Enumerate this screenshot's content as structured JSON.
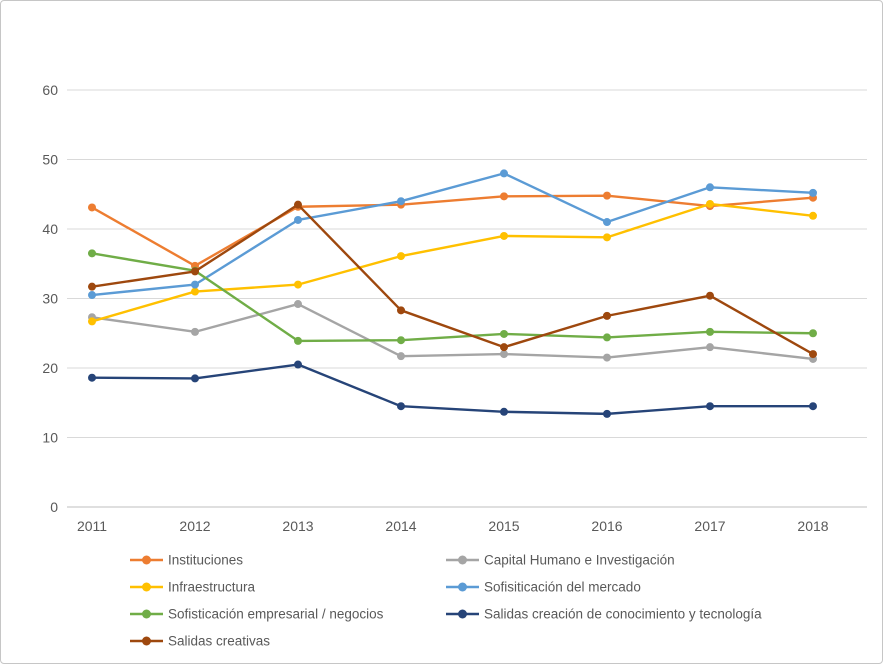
{
  "window": {
    "background_color": "#ffffff",
    "border_color": "#c6c6c6",
    "axis_text_color": "#595959",
    "gridline_color": "#d9d9d9",
    "axis_line_color": "#bfbfbf"
  },
  "chart_data": {
    "type": "line",
    "title": "",
    "xlabel": "",
    "ylabel": "",
    "grid": true,
    "legend_position": "bottom",
    "ylim": [
      0,
      60
    ],
    "yticks": [
      0,
      10,
      20,
      30,
      40,
      50,
      60
    ],
    "categories": [
      "2011",
      "2012",
      "2013",
      "2014",
      "2015",
      "2016",
      "2017",
      "2018"
    ],
    "series": [
      {
        "id": "instituciones",
        "name": "Instituciones",
        "color": "#ED7D31",
        "values": [
          43.1,
          34.7,
          43.2,
          43.5,
          44.7,
          44.8,
          43.3,
          44.5
        ]
      },
      {
        "id": "capital-humano-e-investigacion",
        "name": "Capital Humano e Investigación",
        "color": "#A5A5A5",
        "values": [
          27.3,
          25.2,
          29.2,
          21.7,
          22.0,
          21.5,
          23.0,
          21.3
        ]
      },
      {
        "id": "infraestructura",
        "name": "Infraestructura",
        "color": "#FFC000",
        "values": [
          26.7,
          31.0,
          32.0,
          36.1,
          39.0,
          38.8,
          43.6,
          41.9
        ]
      },
      {
        "id": "sofisiticacion-del-mercado",
        "name": "Sofisiticación del mercado",
        "color": "#5B9BD5",
        "values": [
          30.5,
          32.0,
          41.3,
          44.0,
          48.0,
          41.0,
          46.0,
          45.2
        ]
      },
      {
        "id": "sofisticacion-empresarial-negocios",
        "name": "Sofisticación empresarial / negocios",
        "color": "#70AD47",
        "values": [
          36.5,
          34.0,
          23.9,
          24.0,
          24.9,
          24.4,
          25.2,
          25.0
        ]
      },
      {
        "id": "salidas-creacion-conocimiento-tecnologia",
        "name": "Salidas creación de conocimiento y tecnología",
        "color": "#264478",
        "values": [
          18.6,
          18.5,
          20.5,
          14.5,
          13.7,
          13.4,
          14.5,
          14.5
        ]
      },
      {
        "id": "salidas-creativas",
        "name": "Salidas creativas",
        "color": "#9E480E",
        "values": [
          31.7,
          33.9,
          43.5,
          28.3,
          23.0,
          27.5,
          30.4,
          22.0
        ]
      }
    ]
  }
}
